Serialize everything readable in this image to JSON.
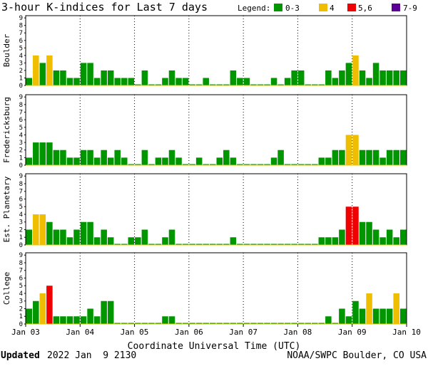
{
  "title": "3-hour K-indices for Last 7 days",
  "legend": {
    "label": "Legend:",
    "items": [
      {
        "label": "0-3",
        "color": "#009600"
      },
      {
        "label": "4",
        "color": "#F0BE00"
      },
      {
        "label": "5,6",
        "color": "#F00000"
      },
      {
        "label": "7-9",
        "color": "#5A0096"
      }
    ]
  },
  "xaxis": {
    "label": "Coordinate Universal Time (UTC)",
    "ticks": [
      "Jan 03",
      "Jan 04",
      "Jan 05",
      "Jan 06",
      "Jan 07",
      "Jan 08",
      "Jan 09",
      "Jan 10"
    ]
  },
  "footer": {
    "updated_label": "Updated",
    "updated_value": "2022 Jan  9 2130",
    "credit": "NOAA/SWPC Boulder, CO USA"
  },
  "colors": {
    "frame": "#000000",
    "grid": "#000000"
  },
  "chart_data": {
    "type": "bar",
    "x_label": "Coordinate Universal Time (UTC)",
    "x_ticks": [
      "Jan 03",
      "Jan 04",
      "Jan 05",
      "Jan 06",
      "Jan 07",
      "Jan 08",
      "Jan 09",
      "Jan 10"
    ],
    "interval_hours": 3,
    "ylim": [
      0,
      9
    ],
    "y_ticks": [
      0,
      1,
      2,
      3,
      4,
      5,
      6,
      7,
      8,
      9
    ],
    "color_scale": [
      {
        "range": "0-3",
        "color": "#009600"
      },
      {
        "range": "4",
        "color": "#F0BE00"
      },
      {
        "range": "5,6",
        "color": "#F00000"
      },
      {
        "range": "7-9",
        "color": "#5A0096"
      }
    ],
    "series": [
      {
        "name": "Boulder",
        "values": [
          1,
          4,
          3,
          4,
          2,
          2,
          1,
          1,
          3,
          3,
          1,
          2,
          2,
          1,
          1,
          1,
          0,
          2,
          0,
          0,
          1,
          2,
          1,
          1,
          0,
          0,
          1,
          0,
          0,
          0,
          2,
          1,
          1,
          0,
          0,
          0,
          1,
          0,
          1,
          2,
          2,
          0,
          0,
          0,
          2,
          1,
          2,
          3,
          4,
          2,
          1,
          3,
          2,
          2,
          2,
          2
        ]
      },
      {
        "name": "Fredericksburg",
        "values": [
          1,
          3,
          3,
          3,
          2,
          2,
          1,
          1,
          2,
          2,
          1,
          2,
          1,
          2,
          1,
          0,
          0,
          2,
          0,
          1,
          1,
          2,
          1,
          0,
          0,
          1,
          0,
          0,
          1,
          2,
          1,
          0,
          0,
          0,
          0,
          0,
          1,
          2,
          0,
          0,
          0,
          0,
          0,
          1,
          1,
          2,
          2,
          4,
          4,
          2,
          2,
          2,
          1,
          2,
          2,
          2
        ]
      },
      {
        "name": "Est. Planetary",
        "values": [
          2,
          4,
          4,
          3,
          2,
          2,
          1,
          2,
          3,
          3,
          1,
          2,
          1,
          0,
          0,
          1,
          1,
          2,
          0,
          0,
          1,
          2,
          0,
          0,
          0,
          0,
          0,
          0,
          0,
          0,
          1,
          0,
          0,
          0,
          0,
          0,
          0,
          0,
          0,
          0,
          0,
          0,
          0,
          1,
          1,
          1,
          2,
          5,
          5,
          3,
          3,
          2,
          1,
          2,
          1,
          2
        ]
      },
      {
        "name": "College",
        "values": [
          2,
          3,
          4,
          5,
          1,
          1,
          1,
          1,
          1,
          2,
          1,
          3,
          3,
          0,
          0,
          0,
          0,
          0,
          0,
          0,
          1,
          1,
          0,
          0,
          0,
          0,
          0,
          0,
          0,
          0,
          0,
          0,
          0,
          0,
          0,
          0,
          0,
          0,
          0,
          0,
          0,
          0,
          0,
          0,
          1,
          0,
          2,
          1,
          3,
          2,
          4,
          2,
          2,
          2,
          4,
          2,
          2,
          0
        ]
      }
    ]
  }
}
